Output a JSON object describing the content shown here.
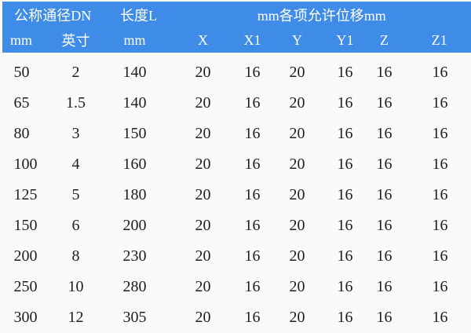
{
  "colors": {
    "header_bg": "#3E8CE8",
    "header_text": "#FFFFFF",
    "page_bg": "#FAFAFA",
    "body_text": "#1E1E1E"
  },
  "table": {
    "header_groups": [
      {
        "label": "公称通径DN",
        "span": 2
      },
      {
        "label": "长度L",
        "span": 1
      },
      {
        "label": "mm各项允许位移mm",
        "span": 6
      }
    ],
    "header_cols": [
      "mm",
      "英寸",
      "mm",
      "X",
      "X1",
      "Y",
      "Y1",
      "Z",
      "Z1"
    ],
    "rows": [
      [
        "50",
        "2",
        "140",
        "20",
        "16",
        "20",
        "16",
        "16",
        "16"
      ],
      [
        "65",
        "1.5",
        "140",
        "20",
        "16",
        "20",
        "16",
        "16",
        "16"
      ],
      [
        "80",
        "3",
        "150",
        "20",
        "16",
        "20",
        "16",
        "16",
        "16"
      ],
      [
        "100",
        "4",
        "160",
        "20",
        "16",
        "20",
        "16",
        "16",
        "16"
      ],
      [
        "125",
        "5",
        "180",
        "20",
        "16",
        "20",
        "16",
        "16",
        "16"
      ],
      [
        "150",
        "6",
        "200",
        "20",
        "16",
        "20",
        "16",
        "16",
        "16"
      ],
      [
        "200",
        "8",
        "230",
        "20",
        "16",
        "20",
        "16",
        "16",
        "16"
      ],
      [
        "250",
        "10",
        "280",
        "20",
        "16",
        "20",
        "16",
        "16",
        "16"
      ],
      [
        "300",
        "12",
        "305",
        "20",
        "16",
        "20",
        "16",
        "16",
        "16"
      ]
    ]
  },
  "chart_data": {
    "type": "table",
    "header_groups": [
      "公称通径DN",
      "长度L",
      "mm各项允许位移mm"
    ],
    "columns": [
      "公称通径DN mm",
      "公称通径DN 英寸",
      "长度L mm",
      "X",
      "X1",
      "Y",
      "Y1",
      "Z",
      "Z1"
    ],
    "rows": [
      [
        50,
        2,
        140,
        20,
        16,
        20,
        16,
        16,
        16
      ],
      [
        65,
        1.5,
        140,
        20,
        16,
        20,
        16,
        16,
        16
      ],
      [
        80,
        3,
        150,
        20,
        16,
        20,
        16,
        16,
        16
      ],
      [
        100,
        4,
        160,
        20,
        16,
        20,
        16,
        16,
        16
      ],
      [
        125,
        5,
        180,
        20,
        16,
        20,
        16,
        16,
        16
      ],
      [
        150,
        6,
        200,
        20,
        16,
        20,
        16,
        16,
        16
      ],
      [
        200,
        8,
        230,
        20,
        16,
        20,
        16,
        16,
        16
      ],
      [
        250,
        10,
        280,
        20,
        16,
        20,
        16,
        16,
        16
      ],
      [
        300,
        12,
        305,
        20,
        16,
        20,
        16,
        16,
        16
      ]
    ]
  }
}
